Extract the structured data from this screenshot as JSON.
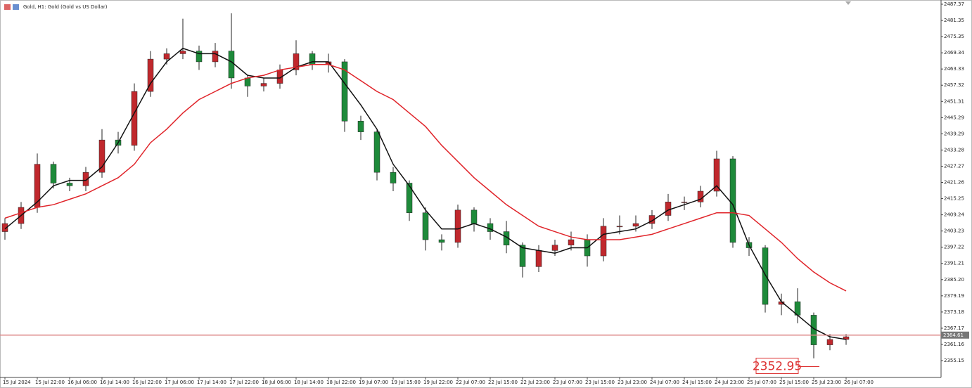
{
  "chart_data": {
    "type": "candlestick",
    "title": "Gold, H1:  Gold (Gold vs US Dollar)",
    "categories": [
      "15 Jul 2024",
      null,
      "15 Jul 22:00",
      null,
      "16 Jul 06:00",
      null,
      "16 Jul 14:00",
      null,
      "16 Jul 22:00",
      null,
      "17 Jul 06:00",
      null,
      "17 Jul 14:00",
      null,
      "17 Jul 22:00",
      null,
      "18 Jul 06:00",
      null,
      "18 Jul 14:00",
      null,
      "18 Jul 22:00",
      null,
      "19 Jul 07:00",
      null,
      "19 Jul 15:00",
      null,
      "19 Jul 22:00",
      null,
      "22 Jul 07:00",
      null,
      "22 Jul 15:00",
      null,
      "22 Jul 23:00",
      null,
      "23 Jul 07:00",
      null,
      "23 Jul 15:00",
      null,
      "23 Jul 23:00",
      null,
      "24 Jul 07:00",
      null,
      "24 Jul 15:00",
      null,
      "24 Jul 23:00",
      null,
      "25 Jul 07:00",
      null,
      "25 Jul 15:00",
      null,
      "25 Jul 23:00",
      null,
      "26 Jul 07:00"
    ],
    "open": [
      2403,
      2406,
      2412,
      2428,
      2421,
      2420,
      2425,
      2437,
      2435,
      2455,
      2467,
      2469,
      2470,
      2466,
      2470,
      2460,
      2457,
      2458,
      2463,
      2469,
      2465,
      2466,
      2444,
      2440,
      2425,
      2421,
      2410,
      2400,
      2399,
      2411,
      2406,
      2403,
      2398,
      2390,
      2396,
      2398,
      2400,
      2394,
      2405,
      2405,
      2406,
      2409,
      2414,
      2414,
      2418,
      2430,
      2399,
      2397,
      2376,
      2377,
      2372,
      2361,
      2363
    ],
    "high": [
      2408,
      2414,
      2432,
      2429,
      2423,
      2427,
      2441,
      2440,
      2458,
      2470,
      2471,
      2482,
      2472,
      2473,
      2484,
      2461,
      2460,
      2465,
      2474,
      2470,
      2469,
      2467,
      2446,
      2441,
      2427,
      2422,
      2412,
      2402,
      2413,
      2412,
      2408,
      2407,
      2399,
      2398,
      2400,
      2403,
      2402,
      2408,
      2409,
      2409,
      2411,
      2417,
      2416,
      2420,
      2433,
      2431,
      2401,
      2398,
      2380,
      2382,
      2373,
      2365,
      2365
    ],
    "low": [
      2400,
      2404,
      2410,
      2419,
      2418,
      2418,
      2423,
      2432,
      2433,
      2453,
      2465,
      2467,
      2463,
      2464,
      2456,
      2453,
      2455,
      2456,
      2461,
      2463,
      2462,
      2440,
      2437,
      2422,
      2418,
      2407,
      2396,
      2396,
      2397,
      2403,
      2400,
      2395,
      2386,
      2388,
      2394,
      2396,
      2390,
      2392,
      2402,
      2403,
      2404,
      2407,
      2411,
      2412,
      2416,
      2397,
      2394,
      2373,
      2372,
      2369,
      2356,
      2359,
      2361
    ],
    "close": [
      2406,
      2412,
      2428,
      2421,
      2420,
      2425,
      2437,
      2435,
      2455,
      2467,
      2469,
      2470,
      2466,
      2470,
      2460,
      2457,
      2458,
      2463,
      2469,
      2465,
      2466,
      2444,
      2440,
      2425,
      2421,
      2410,
      2400,
      2399,
      2411,
      2406,
      2403,
      2398,
      2390,
      2396,
      2398,
      2400,
      2394,
      2405,
      2405,
      2406,
      2409,
      2414,
      2414,
      2418,
      2430,
      2399,
      2397,
      2376,
      2377,
      2372,
      2361,
      2363,
      2364
    ],
    "up_color": "#c0282d",
    "down_color": "#1e8a3a",
    "lines": [
      {
        "color": "#111111",
        "values": [
          2404,
          2409,
          2414,
          2420,
          2422,
          2422,
          2427,
          2436,
          2447,
          2458,
          2466,
          2471,
          2469,
          2469,
          2466,
          2461,
          2460,
          2460,
          2464,
          2466,
          2466,
          2458,
          2450,
          2441,
          2428,
          2420,
          2411,
          2404,
          2404,
          2406,
          2404,
          2401,
          2397,
          2396,
          2395,
          2397,
          2397,
          2402,
          2403,
          2404,
          2407,
          2411,
          2413,
          2415,
          2420,
          2413,
          2398,
          2387,
          2377,
          2372,
          2367,
          2364,
          2363
        ]
      },
      {
        "color": "#e0242a",
        "values": [
          2408,
          2410,
          2412,
          2413,
          2415,
          2417,
          2420,
          2423,
          2428,
          2436,
          2441,
          2447,
          2452,
          2455,
          2458,
          2460,
          2461,
          2463,
          2464,
          2465,
          2465,
          2463,
          2459,
          2455,
          2452,
          2447,
          2442,
          2435,
          2429,
          2423,
          2418,
          2413,
          2409,
          2405,
          2403,
          2401,
          2400,
          2400,
          2400,
          2401,
          2402,
          2404,
          2406,
          2408,
          2410,
          2410,
          2409,
          2404,
          2399,
          2393,
          2388,
          2384,
          2381
        ]
      }
    ],
    "last_price": 2364.61,
    "annotation": 2352.95,
    "ylim": [
      2348.9,
      2488.93
    ],
    "yticks": [
      2487.37,
      2481.35,
      2475.35,
      2469.34,
      2463.33,
      2457.32,
      2451.31,
      2445.29,
      2439.29,
      2433.28,
      2427.27,
      2421.26,
      2415.25,
      2409.24,
      2403.23,
      2397.22,
      2391.21,
      {
        "value": 2385.2,
        "label": "2385.20"
      },
      2379.19,
      2373.18,
      2367.17,
      2361.16,
      2355.15
    ]
  }
}
